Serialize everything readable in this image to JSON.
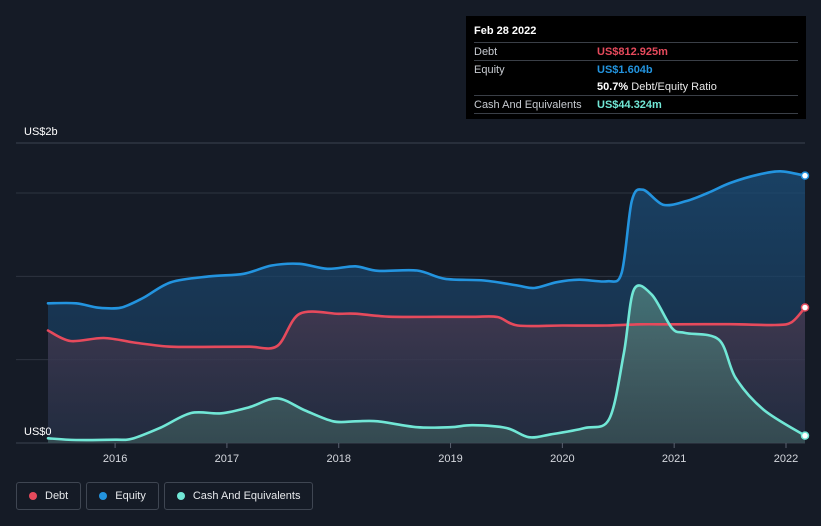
{
  "tooltip": {
    "date": "Feb 28 2022",
    "debt_label": "Debt",
    "debt_value": "US$812.925m",
    "equity_label": "Equity",
    "equity_value": "US$1.604b",
    "ratio_value": "50.7%",
    "ratio_label": "Debt/Equity Ratio",
    "cash_label": "Cash And Equivalents",
    "cash_value": "US$44.324m"
  },
  "legend": {
    "debt": "Debt",
    "equity": "Equity",
    "cash": "Cash And Equivalents"
  },
  "colors": {
    "background": "#151b26",
    "debt": "#e64a5c",
    "equity": "#2394df",
    "cash": "#71e7d6",
    "grid": "#2d3440"
  },
  "chart_data": {
    "type": "area",
    "y_unit": "US$ millions",
    "ylim": [
      0,
      1800
    ],
    "y_tick_labels": [
      {
        "value": 1800,
        "label": "US$2b"
      },
      {
        "value": 0,
        "label": "US$0"
      }
    ],
    "y_gridlines": [
      0,
      1000,
      1500,
      1800
    ],
    "xlim": [
      2015.4,
      2022.17
    ],
    "x_ticks": [
      {
        "value": 2016,
        "label": "2016"
      },
      {
        "value": 2017,
        "label": "2017"
      },
      {
        "value": 2018,
        "label": "2018"
      },
      {
        "value": 2019,
        "label": "2019"
      },
      {
        "value": 2020,
        "label": "2020"
      },
      {
        "value": 2021,
        "label": "2021"
      },
      {
        "value": 2022,
        "label": "2022"
      }
    ],
    "series": [
      {
        "name": "Debt",
        "key": "debt",
        "points": [
          [
            2015.4,
            675
          ],
          [
            2015.6,
            612
          ],
          [
            2015.9,
            630
          ],
          [
            2016.2,
            600
          ],
          [
            2016.5,
            578
          ],
          [
            2016.9,
            577
          ],
          [
            2017.2,
            578
          ],
          [
            2017.45,
            582
          ],
          [
            2017.65,
            775
          ],
          [
            2018.0,
            775
          ],
          [
            2018.15,
            776
          ],
          [
            2018.45,
            758
          ],
          [
            2018.9,
            757
          ],
          [
            2019.2,
            757
          ],
          [
            2019.42,
            756
          ],
          [
            2019.6,
            705
          ],
          [
            2020.0,
            705
          ],
          [
            2020.4,
            705
          ],
          [
            2020.7,
            712
          ],
          [
            2021.0,
            712
          ],
          [
            2021.5,
            713
          ],
          [
            2021.9,
            708
          ],
          [
            2022.05,
            725
          ],
          [
            2022.17,
            813
          ]
        ]
      },
      {
        "name": "Equity",
        "key": "equity",
        "points": [
          [
            2015.4,
            838
          ],
          [
            2015.65,
            838
          ],
          [
            2015.85,
            812
          ],
          [
            2016.05,
            812
          ],
          [
            2016.25,
            870
          ],
          [
            2016.5,
            965
          ],
          [
            2016.85,
            1000
          ],
          [
            2017.15,
            1015
          ],
          [
            2017.4,
            1065
          ],
          [
            2017.65,
            1075
          ],
          [
            2017.9,
            1045
          ],
          [
            2018.15,
            1060
          ],
          [
            2018.35,
            1033
          ],
          [
            2018.7,
            1035
          ],
          [
            2018.95,
            985
          ],
          [
            2019.3,
            975
          ],
          [
            2019.6,
            945
          ],
          [
            2019.75,
            930
          ],
          [
            2019.95,
            965
          ],
          [
            2020.15,
            980
          ],
          [
            2020.4,
            970
          ],
          [
            2020.53,
            1020
          ],
          [
            2020.62,
            1450
          ],
          [
            2020.72,
            1520
          ],
          [
            2020.9,
            1430
          ],
          [
            2021.1,
            1450
          ],
          [
            2021.3,
            1500
          ],
          [
            2021.5,
            1560
          ],
          [
            2021.75,
            1610
          ],
          [
            2021.95,
            1630
          ],
          [
            2022.17,
            1604
          ]
        ]
      },
      {
        "name": "Cash And Equivalents",
        "key": "cash",
        "points": [
          [
            2015.4,
            28
          ],
          [
            2015.65,
            18
          ],
          [
            2016.0,
            20
          ],
          [
            2016.15,
            25
          ],
          [
            2016.4,
            90
          ],
          [
            2016.68,
            180
          ],
          [
            2016.95,
            178
          ],
          [
            2017.2,
            215
          ],
          [
            2017.45,
            268
          ],
          [
            2017.7,
            195
          ],
          [
            2017.95,
            130
          ],
          [
            2018.15,
            130
          ],
          [
            2018.35,
            130
          ],
          [
            2018.7,
            95
          ],
          [
            2019.0,
            95
          ],
          [
            2019.2,
            107
          ],
          [
            2019.5,
            90
          ],
          [
            2019.7,
            35
          ],
          [
            2019.9,
            52
          ],
          [
            2020.2,
            90
          ],
          [
            2020.42,
            145
          ],
          [
            2020.55,
            540
          ],
          [
            2020.64,
            920
          ],
          [
            2020.8,
            890
          ],
          [
            2020.98,
            690
          ],
          [
            2021.1,
            660
          ],
          [
            2021.4,
            620
          ],
          [
            2021.55,
            390
          ],
          [
            2021.8,
            200
          ],
          [
            2022.17,
            44
          ]
        ]
      }
    ]
  }
}
